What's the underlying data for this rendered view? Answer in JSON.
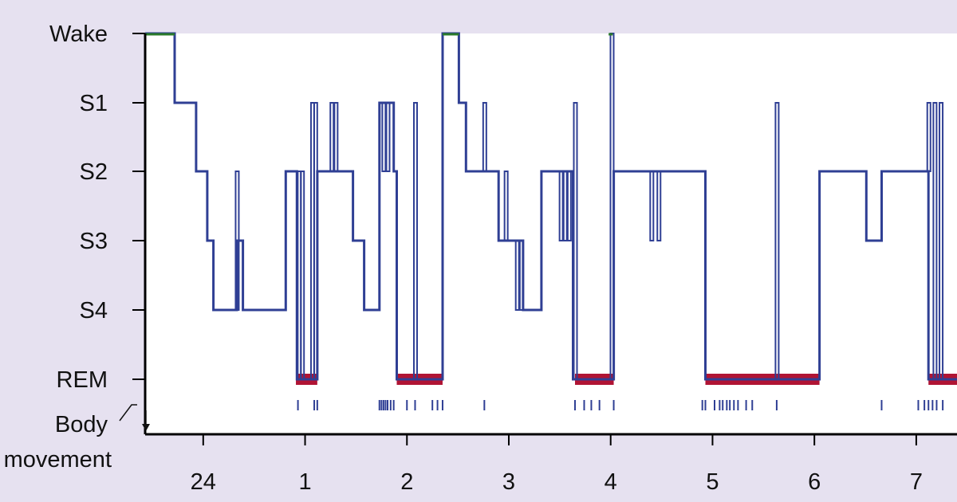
{
  "chart_data": {
    "type": "line",
    "title": "",
    "y_categories": [
      "Wake",
      "S1",
      "S2",
      "S3",
      "S4",
      "REM"
    ],
    "body_movement_label": [
      "Body",
      "movement"
    ],
    "x_ticks": [
      {
        "label": "24",
        "value": 0
      },
      {
        "label": "1",
        "value": 1
      },
      {
        "label": "2",
        "value": 2
      },
      {
        "label": "3",
        "value": 3
      },
      {
        "label": "4",
        "value": 4
      },
      {
        "label": "5",
        "value": 5
      },
      {
        "label": "6",
        "value": 6
      },
      {
        "label": "7",
        "value": 7
      }
    ],
    "xlim": [
      -0.57,
      7.4
    ],
    "series": [
      {
        "type": "hypnogram",
        "points": [
          [
            -0.57,
            "Wake"
          ],
          [
            -0.28,
            "Wake"
          ],
          [
            -0.28,
            "S1"
          ],
          [
            -0.07,
            "S1"
          ],
          [
            -0.07,
            "S2"
          ],
          [
            0.04,
            "S2"
          ],
          [
            0.04,
            "S3"
          ],
          [
            0.1,
            "S3"
          ],
          [
            0.1,
            "S4"
          ],
          [
            0.33,
            "S4"
          ],
          [
            0.33,
            "S3"
          ],
          [
            0.39,
            "S3"
          ],
          [
            0.39,
            "S4"
          ],
          [
            0.81,
            "S4"
          ],
          [
            0.81,
            "S2"
          ],
          [
            0.92,
            "S2"
          ],
          [
            0.92,
            "REM"
          ],
          [
            1.12,
            "REM"
          ],
          [
            1.12,
            "S2"
          ],
          [
            1.47,
            "S2"
          ],
          [
            1.47,
            "S3"
          ],
          [
            1.58,
            "S3"
          ],
          [
            1.58,
            "S4"
          ],
          [
            1.73,
            "S4"
          ],
          [
            1.73,
            "S1"
          ],
          [
            1.87,
            "S1"
          ],
          [
            1.87,
            "S2"
          ],
          [
            1.9,
            "S2"
          ],
          [
            1.9,
            "REM"
          ],
          [
            2.35,
            "REM"
          ],
          [
            2.35,
            "Wake"
          ],
          [
            2.51,
            "Wake"
          ],
          [
            2.51,
            "S1"
          ],
          [
            2.58,
            "S1"
          ],
          [
            2.58,
            "S2"
          ],
          [
            2.9,
            "S2"
          ],
          [
            2.9,
            "S3"
          ],
          [
            3.14,
            "S3"
          ],
          [
            3.14,
            "S4"
          ],
          [
            3.32,
            "S4"
          ],
          [
            3.32,
            "S2"
          ],
          [
            3.63,
            "S2"
          ],
          [
            3.63,
            "REM"
          ],
          [
            4.03,
            "REM"
          ],
          [
            4.03,
            "S2"
          ],
          [
            4.93,
            "S2"
          ],
          [
            4.93,
            "REM"
          ],
          [
            6.05,
            "REM"
          ],
          [
            6.05,
            "S2"
          ],
          [
            6.51,
            "S2"
          ],
          [
            6.51,
            "S3"
          ],
          [
            6.66,
            "S3"
          ],
          [
            6.66,
            "S2"
          ],
          [
            7.12,
            "S2"
          ],
          [
            7.12,
            "REM"
          ],
          [
            7.4,
            "REM"
          ]
        ],
        "spikes": [
          {
            "x": 0.33,
            "from": "S4",
            "to": "S2"
          },
          {
            "x": 0.94,
            "from": "REM",
            "to": "S2"
          },
          {
            "x": 0.97,
            "from": "REM",
            "to": "S2"
          },
          {
            "x": 1.07,
            "from": "REM",
            "to": "S1"
          },
          {
            "x": 1.1,
            "from": "REM",
            "to": "S1"
          },
          {
            "x": 1.26,
            "from": "S2",
            "to": "S1"
          },
          {
            "x": 1.3,
            "from": "S2",
            "to": "S1"
          },
          {
            "x": 1.77,
            "from": "S2",
            "to": "S1"
          },
          {
            "x": 1.81,
            "from": "S2",
            "to": "S1"
          },
          {
            "x": 2.08,
            "from": "REM",
            "to": "S1"
          },
          {
            "x": 2.76,
            "from": "S2",
            "to": "S1"
          },
          {
            "x": 2.97,
            "from": "S3",
            "to": "S2"
          },
          {
            "x": 3.08,
            "from": "S4",
            "to": "S3"
          },
          {
            "x": 3.12,
            "from": "S4",
            "to": "S3"
          },
          {
            "x": 3.51,
            "from": "S3",
            "to": "S2"
          },
          {
            "x": 3.55,
            "from": "S3",
            "to": "S2"
          },
          {
            "x": 3.59,
            "from": "S3",
            "to": "S2"
          },
          {
            "x": 3.65,
            "from": "REM",
            "to": "S1"
          },
          {
            "x": 4.01,
            "from": "REM",
            "to": "Wake"
          },
          {
            "x": 4.4,
            "from": "S2",
            "to": "S3"
          },
          {
            "x": 4.47,
            "from": "S2",
            "to": "S3"
          },
          {
            "x": 5.63,
            "from": "REM",
            "to": "S1"
          },
          {
            "x": 7.12,
            "from": "S2",
            "to": "S1"
          },
          {
            "x": 7.18,
            "from": "REM",
            "to": "S1"
          },
          {
            "x": 7.24,
            "from": "REM",
            "to": "S1"
          }
        ]
      }
    ],
    "wake_segments": [
      [
        -0.57,
        -0.28
      ],
      [
        2.35,
        2.51
      ],
      [
        3.98,
        4.02
      ]
    ],
    "rem_segments": [
      [
        0.91,
        1.12
      ],
      [
        1.9,
        2.35
      ],
      [
        3.65,
        4.03
      ],
      [
        4.93,
        6.05
      ],
      [
        7.12,
        7.4
      ]
    ],
    "body_movements": [
      0.93,
      1.09,
      1.12,
      1.73,
      1.75,
      1.77,
      1.79,
      1.81,
      1.84,
      1.87,
      2.0,
      2.08,
      2.25,
      2.3,
      2.35,
      2.76,
      3.65,
      3.74,
      3.81,
      3.89,
      4.03,
      4.9,
      4.93,
      5.02,
      5.07,
      5.1,
      5.14,
      5.17,
      5.21,
      5.25,
      5.33,
      5.39,
      5.63,
      6.66,
      7.02,
      7.08,
      7.12,
      7.16,
      7.2,
      7.26
    ],
    "colors": {
      "stage_line": "#2f3f94",
      "rem_bar": "#b01434",
      "wake_line": "#2a7a2a",
      "background": "#e6e1f0",
      "plot_area": "#ffffff",
      "axis": "#000000"
    }
  }
}
